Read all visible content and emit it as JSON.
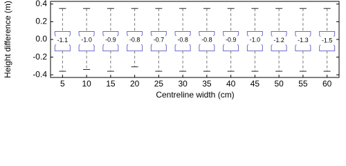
{
  "chart_data": {
    "type": "box",
    "x_label": "Centreline width (cm)",
    "y_label": "Height difference (m)",
    "categories": [
      "5",
      "10",
      "15",
      "20",
      "25",
      "30",
      "35",
      "40",
      "45",
      "50",
      "55",
      "60"
    ],
    "whisker_high": [
      0.35,
      0.35,
      0.35,
      0.35,
      0.35,
      0.35,
      0.35,
      0.35,
      0.35,
      0.35,
      0.35,
      0.35
    ],
    "q3": [
      0.09,
      0.09,
      0.09,
      0.09,
      0.09,
      0.09,
      0.09,
      0.09,
      0.09,
      0.09,
      0.09,
      0.09
    ],
    "values": [
      -0.011,
      -0.01,
      -0.009,
      -0.008,
      -0.007,
      -0.008,
      -0.008,
      -0.009,
      -0.01,
      -0.012,
      -0.013,
      -0.015
    ],
    "value_labels": [
      "-1.1",
      "-1.0",
      "-0.9",
      "-0.8",
      "-0.7",
      "-0.8",
      "-0.8",
      "-0.9",
      "-1.0",
      "-1.2",
      "-1.3",
      "-1.5"
    ],
    "q1": [
      -0.13,
      -0.13,
      -0.13,
      -0.13,
      -0.13,
      -0.13,
      -0.13,
      -0.13,
      -0.13,
      -0.13,
      -0.13,
      -0.13
    ],
    "whisker_low": [
      -0.36,
      -0.34,
      -0.36,
      -0.31,
      -0.36,
      -0.36,
      -0.36,
      -0.36,
      -0.36,
      -0.36,
      -0.36,
      -0.36
    ],
    "box_color": "#6a6ac8",
    "whisker_color": "#777777",
    "ylim": [
      -0.43,
      0.43
    ],
    "yticks": [
      -0.4,
      -0.2,
      {
        "value": 0,
        "label": "0.0"
      },
      0.2,
      0.4
    ]
  }
}
